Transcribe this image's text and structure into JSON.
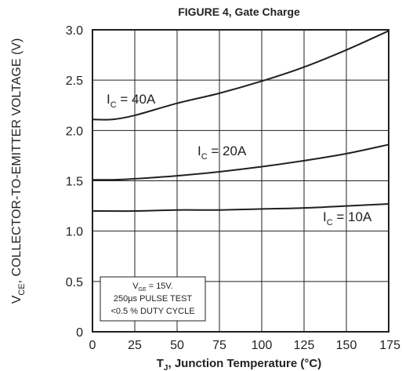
{
  "chart_data": {
    "type": "line",
    "title": "FIGURE 4, Gate  Charge",
    "xlabel": {
      "main": "T",
      "sub": "J",
      "rest": ", Junction Temperature (°C)"
    },
    "ylabel": {
      "main": "V",
      "sub": "CE",
      "rest": ", COLLECTOR-TO-EMITTER VOLTAGE (V)"
    },
    "xlim": [
      0,
      175
    ],
    "ylim": [
      0,
      3.0
    ],
    "x_ticks": [
      "0",
      "25",
      "50",
      "75",
      "100",
      "125",
      "150",
      "175"
    ],
    "y_ticks": [
      "0",
      "0.5",
      "1.0",
      "1.5",
      "2.0",
      "2.5",
      "3.0"
    ],
    "grid": true,
    "series": [
      {
        "name": "I_C = 40A",
        "label": {
          "main": "I",
          "sub": "C",
          "rest": " = 40A"
        },
        "x": [
          0,
          12,
          25,
          50,
          75,
          100,
          125,
          150,
          175
        ],
        "y": [
          2.11,
          2.11,
          2.15,
          2.27,
          2.37,
          2.49,
          2.63,
          2.8,
          2.99
        ]
      },
      {
        "name": "I_C = 20A",
        "label": {
          "main": "I",
          "sub": "C",
          "rest": " = 20A"
        },
        "x": [
          0,
          12,
          25,
          50,
          75,
          100,
          125,
          150,
          175
        ],
        "y": [
          1.51,
          1.51,
          1.52,
          1.55,
          1.59,
          1.64,
          1.7,
          1.77,
          1.86
        ]
      },
      {
        "name": "I_C = 10A",
        "label": {
          "main": "I",
          "sub": "C",
          "rest": " = 10A"
        },
        "x": [
          0,
          25,
          50,
          75,
          100,
          125,
          150,
          175
        ],
        "y": [
          1.2,
          1.2,
          1.21,
          1.21,
          1.22,
          1.23,
          1.25,
          1.27
        ]
      }
    ],
    "note": {
      "line1_main": "V",
      "line1_sub": "GE",
      "line1_rest": " = 15V.",
      "line2": "250µs PULSE TEST",
      "line3": "<0.5 % DUTY CYCLE"
    },
    "colors": {
      "line": "#231f20",
      "grid": "#231f20",
      "background": "#ffffff"
    }
  }
}
